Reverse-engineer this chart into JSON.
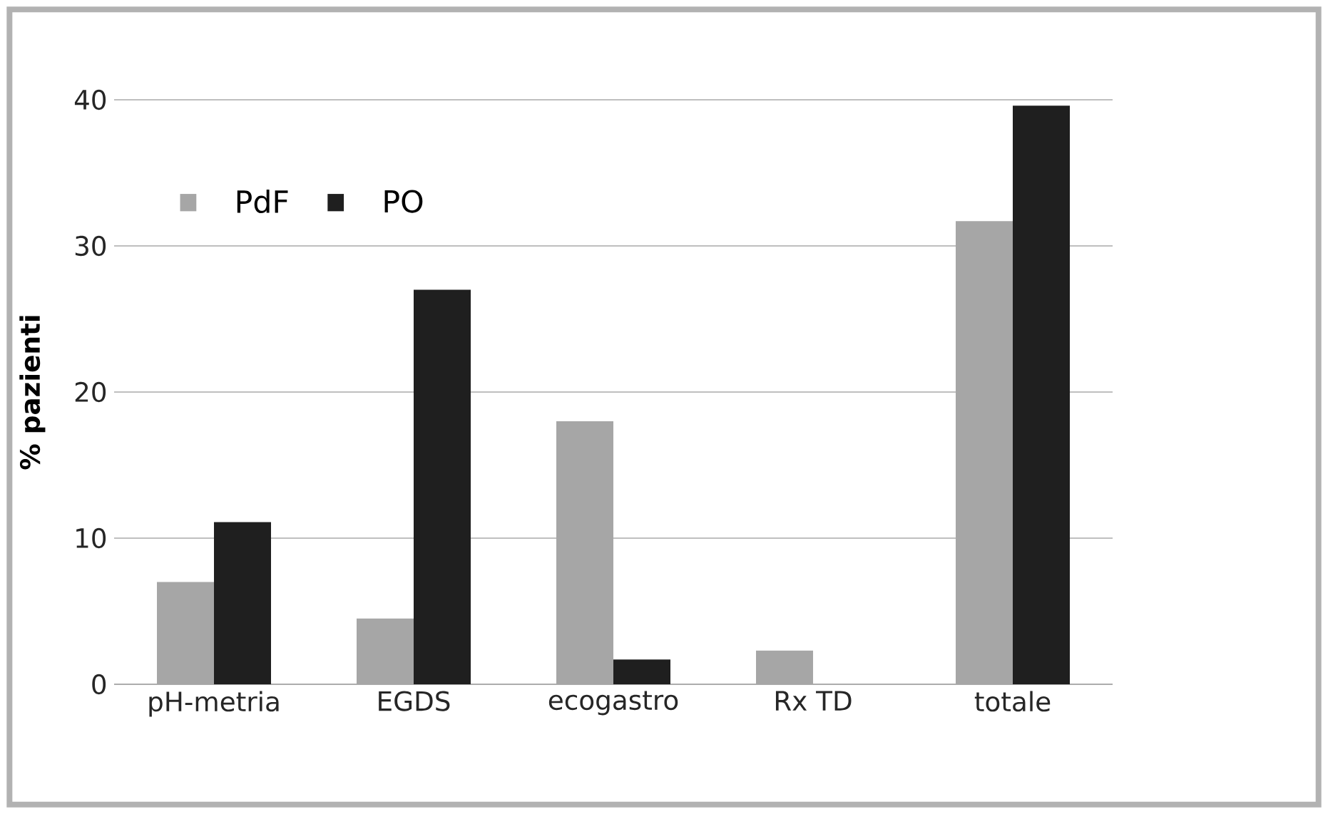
{
  "chart_data": {
    "type": "bar",
    "ylabel": "% pazienti",
    "categories": [
      "pH-metria",
      "EGDS",
      "ecogastro",
      "Rx TD",
      "totale"
    ],
    "series": [
      {
        "name": "PdF",
        "color": "#a6a6a6",
        "values": [
          7,
          4.5,
          18,
          2.3,
          31.7
        ]
      },
      {
        "name": "PO",
        "color": "#1f1f1f",
        "values": [
          11.1,
          27,
          1.7,
          0,
          39.6
        ]
      }
    ],
    "ylim": [
      0,
      40
    ],
    "yticks": [
      0,
      10,
      20,
      30,
      40
    ],
    "grid": "y",
    "legend": "top left"
  }
}
